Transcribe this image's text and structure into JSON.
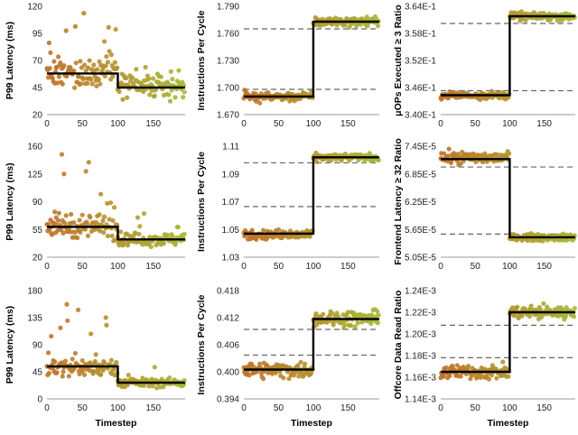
{
  "chart_data": [
    {
      "id": "p1",
      "type": "scatter",
      "ylabel": "P99 Latency (ms)",
      "xlabel": "",
      "ylim": [
        20,
        120
      ],
      "yticks": [
        "20",
        "45",
        "70",
        "95",
        "120"
      ],
      "xlim": [
        0,
        195
      ],
      "xticks": [
        "0",
        "50",
        "100",
        "150"
      ],
      "change_at": 100,
      "before": {
        "mean": 58,
        "spread": 10,
        "out_count": 14,
        "out_max": 115,
        "out_dir": 1
      },
      "after": {
        "mean": 45,
        "spread": 7,
        "out_count": 8,
        "out_max": 70,
        "out_dir": 1
      },
      "step": [
        58,
        45
      ],
      "refs": []
    },
    {
      "id": "p2",
      "type": "scatter",
      "ylabel": "Instructions Per Cycle",
      "xlabel": "",
      "ylim": [
        1.67,
        1.79
      ],
      "yticks": [
        "1.670",
        "1.700",
        "1.730",
        "1.760",
        "1.790"
      ],
      "xlim": [
        0,
        195
      ],
      "xticks": [
        "0",
        "50",
        "100",
        "150"
      ],
      "change_at": 100,
      "before": {
        "mean": 1.69,
        "spread": 0.0035,
        "out_count": 0,
        "out_max": 1.69,
        "out_dir": 1
      },
      "after": {
        "mean": 1.773,
        "spread": 0.0035,
        "out_count": 0,
        "out_max": 1.773,
        "out_dir": 1
      },
      "step": [
        1.69,
        1.773
      ],
      "refs": [
        1.698,
        1.765
      ]
    },
    {
      "id": "p3",
      "type": "scatter",
      "ylabel": "μOPs Executed ≥ 3 Ratio",
      "xlabel": "",
      "ylim": [
        0.34,
        0.364
      ],
      "yticks": [
        "3.40E-1",
        "3.46E-1",
        "3.52E-1",
        "3.58E-1",
        "3.64E-1"
      ],
      "xlim": [
        0,
        195
      ],
      "xticks": [
        "0",
        "50",
        "100",
        "150"
      ],
      "change_at": 100,
      "before": {
        "mean": 0.3443,
        "spread": 0.0006,
        "out_count": 0,
        "out_max": 0.3443,
        "out_dir": 1
      },
      "after": {
        "mean": 0.3618,
        "spread": 0.0006,
        "out_count": 0,
        "out_max": 0.3618,
        "out_dir": 1
      },
      "step": [
        0.3443,
        0.3618
      ],
      "refs": [
        0.3453,
        0.3602
      ]
    },
    {
      "id": "p4",
      "type": "scatter",
      "ylabel": "P99 Latency (ms)",
      "xlabel": "",
      "ylim": [
        20,
        170
      ],
      "yticks": [
        "20",
        "55",
        "90",
        "125",
        "160"
      ],
      "xlim": [
        0,
        195
      ],
      "xticks": [
        "0",
        "50",
        "100",
        "150"
      ],
      "change_at": 100,
      "before": {
        "mean": 62,
        "spread": 12,
        "out_count": 10,
        "out_max": 162,
        "out_dir": 1
      },
      "after": {
        "mean": 44,
        "spread": 6,
        "out_count": 5,
        "out_max": 80,
        "out_dir": 1
      },
      "step": [
        61,
        44
      ],
      "refs": []
    },
    {
      "id": "p5",
      "type": "scatter",
      "ylabel": "Instructions Per Cycle",
      "xlabel": "",
      "ylim": [
        1.03,
        1.11
      ],
      "yticks": [
        "1.03",
        "1.05",
        "1.07",
        "1.09",
        "1.11"
      ],
      "xlim": [
        0,
        195
      ],
      "xticks": [
        "0",
        "50",
        "100",
        "150"
      ],
      "change_at": 100,
      "before": {
        "mean": 1.046,
        "spread": 0.0025,
        "out_count": 0,
        "out_max": 1.046,
        "out_dir": 1
      },
      "after": {
        "mean": 1.102,
        "spread": 0.0018,
        "out_count": 0,
        "out_max": 1.102,
        "out_dir": 1
      },
      "step": [
        1.047,
        1.102
      ],
      "refs": [
        1.0665,
        1.098
      ]
    },
    {
      "id": "p6",
      "type": "scatter",
      "ylabel": "Frontend Latency ≥ 32 Ratio",
      "xlabel": "",
      "ylim": [
        5.05e-05,
        7.45e-05
      ],
      "yticks": [
        "5.05E-5",
        "5.65E-5",
        "6.25E-5",
        "6.85E-5",
        "7.45E-5"
      ],
      "xlim": [
        0,
        195
      ],
      "xticks": [
        "0",
        "50",
        "100",
        "150"
      ],
      "change_at": 100,
      "before": {
        "mean": 7.2e-05,
        "spread": 9e-07,
        "out_count": 0,
        "out_max": 7.2e-05,
        "out_dir": 1
      },
      "after": {
        "mean": 5.48e-05,
        "spread": 5e-07,
        "out_count": 0,
        "out_max": 5.48e-05,
        "out_dir": 1
      },
      "step": [
        7.17e-05,
        5.48e-05
      ],
      "refs": [
        7e-05,
        5.55e-05
      ]
    },
    {
      "id": "p7",
      "type": "scatter",
      "ylabel": "P99 Latency (ms)",
      "xlabel": "Timestep",
      "ylim": [
        0,
        180
      ],
      "yticks": [
        "0",
        "45",
        "90",
        "135",
        "180"
      ],
      "xlim": [
        0,
        195
      ],
      "xticks": [
        "0",
        "50",
        "100",
        "150"
      ],
      "change_at": 100,
      "before": {
        "mean": 52,
        "spread": 10,
        "out_count": 12,
        "out_max": 168,
        "out_dir": 1
      },
      "after": {
        "mean": 27,
        "spread": 5,
        "out_count": 5,
        "out_max": 55,
        "out_dir": 1
      },
      "step": [
        54,
        27
      ],
      "refs": []
    },
    {
      "id": "p8",
      "type": "scatter",
      "ylabel": "Instructions Per Cycle",
      "xlabel": "Timestep",
      "ylim": [
        0.394,
        0.418
      ],
      "yticks": [
        "0.394",
        "0.400",
        "0.406",
        "0.412",
        "0.418"
      ],
      "xlim": [
        0,
        195
      ],
      "xticks": [
        "0",
        "50",
        "100",
        "150"
      ],
      "change_at": 100,
      "before": {
        "mean": 0.4004,
        "spread": 0.0012,
        "out_count": 0,
        "out_max": 0.4004,
        "out_dir": 1
      },
      "after": {
        "mean": 0.4118,
        "spread": 0.0012,
        "out_count": 0,
        "out_max": 0.4118,
        "out_dir": 1
      },
      "step": [
        0.4005,
        0.4117
      ],
      "refs": [
        0.4037,
        0.4094
      ]
    },
    {
      "id": "p9",
      "type": "scatter",
      "ylabel": "Offcore Data Read Ratio",
      "xlabel": "Timestep",
      "ylim": [
        0.00114,
        0.00124
      ],
      "yticks": [
        "1.14E-3",
        "1.16E-3",
        "1.18E-3",
        "1.20E-3",
        "1.22E-3",
        "1.24E-3"
      ],
      "xlim": [
        0,
        195
      ],
      "xticks": [
        "0",
        "50",
        "100",
        "150"
      ],
      "change_at": 100,
      "before": {
        "mean": 0.001165,
        "spread": 4.5e-06,
        "out_count": 0,
        "out_max": 0.001165,
        "out_dir": 1
      },
      "after": {
        "mean": 0.00122,
        "spread": 4.5e-06,
        "out_count": 0,
        "out_max": 0.00122,
        "out_dir": 1
      },
      "step": [
        0.001165,
        0.00122
      ],
      "refs": [
        0.001178,
        0.001208
      ]
    }
  ],
  "colors": {
    "early": "#c0722a",
    "late": "#a8b838",
    "step": "#000000",
    "ref": "#666666"
  }
}
